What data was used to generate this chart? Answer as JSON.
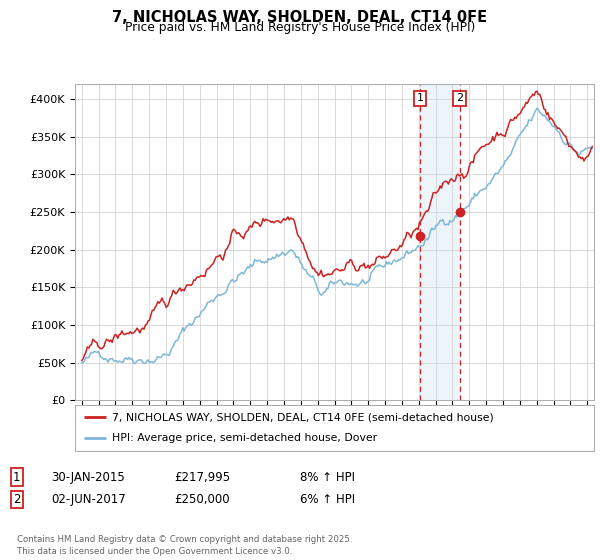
{
  "title": "7, NICHOLAS WAY, SHOLDEN, DEAL, CT14 0FE",
  "subtitle": "Price paid vs. HM Land Registry's House Price Index (HPI)",
  "ylabel_ticks": [
    "£0",
    "£50K",
    "£100K",
    "£150K",
    "£200K",
    "£250K",
    "£300K",
    "£350K",
    "£400K"
  ],
  "ytick_values": [
    0,
    50000,
    100000,
    150000,
    200000,
    250000,
    300000,
    350000,
    400000
  ],
  "ylim": [
    0,
    420000
  ],
  "xlim_start": 1994.6,
  "xlim_end": 2025.4,
  "hpi_color": "#7db8d8",
  "price_color": "#cc2222",
  "marker1_x": 2015.08,
  "marker1_y": 217995,
  "marker2_x": 2017.42,
  "marker2_y": 250000,
  "shade_alpha": 0.12,
  "shade_color": "#6baed6",
  "annotation1": "1",
  "annotation2": "2",
  "legend_label1": "7, NICHOLAS WAY, SHOLDEN, DEAL, CT14 0FE (semi-detached house)",
  "legend_label2": "HPI: Average price, semi-detached house, Dover",
  "table_row1": [
    "1",
    "30-JAN-2015",
    "£217,995",
    "8% ↑ HPI"
  ],
  "table_row2": [
    "2",
    "02-JUN-2017",
    "£250,000",
    "6% ↑ HPI"
  ],
  "footer": "Contains HM Land Registry data © Crown copyright and database right 2025.\nThis data is licensed under the Open Government Licence v3.0.",
  "background_color": "#ffffff",
  "grid_color": "#cccccc",
  "noise_seed": 42,
  "noise_scale_hpi": 2500,
  "noise_scale_price": 3000
}
